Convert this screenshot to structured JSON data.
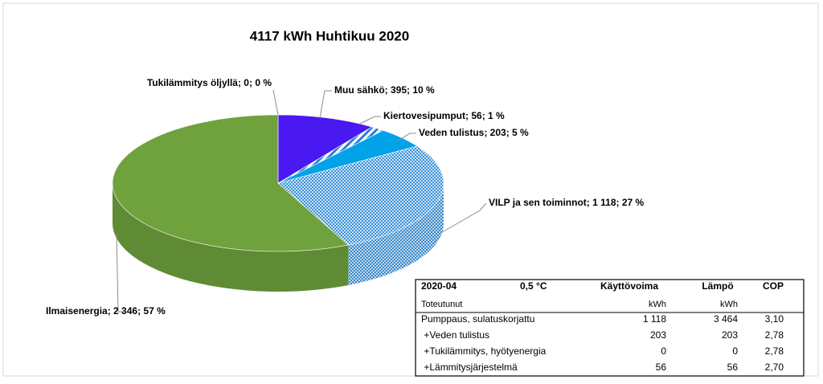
{
  "chart_data": {
    "type": "pie3d",
    "title": "4117  kWh Huhtikuu 2020",
    "categories": [
      "Tukilämmitys öljyllä",
      "Muu sähkö",
      "Kiertovesipumput",
      "Veden tulistus",
      "VILP ja sen toiminnot",
      "Ilmaisenergia"
    ],
    "values": [
      0,
      395,
      56,
      203,
      1118,
      2346
    ],
    "value_labels": [
      "Tukilämmitys öljyllä; 0; 0 %",
      "Muu sähkö; 395; 10 %",
      "Kiertovesipumput; 56; 1 %",
      "Veden tulistus; 203; 5 %",
      "VILP ja sen toiminnot; 1 118; 27 %",
      "Ilmaisenergia; 2 346; 57 %"
    ],
    "colors": [
      "#7f7f7f",
      "#4a18f0",
      "#2a7fd4",
      "#00a2e8",
      "#3b8fd6",
      "#6fa23d"
    ],
    "fill_patterns": [
      "solid",
      "solid",
      "stripes",
      "solid",
      "checker",
      "solid"
    ]
  },
  "table": {
    "header": [
      "2020-04",
      "0,5 °C",
      "Käyttövoima",
      "Lämpö",
      "COP"
    ],
    "units": {
      "label": "Toteutunut",
      "columns": [
        "kWh",
        "kWh"
      ]
    },
    "rows": [
      [
        "Pumppaus, sulatuskorjattu",
        "1 118",
        "3 464",
        "3,10"
      ],
      [
        " +Veden tulistus",
        "203",
        "203",
        "2,78"
      ],
      [
        " +Tukilämmitys, hyötyenergia",
        "0",
        "0",
        "2,78"
      ],
      [
        " +Lämmitysjärjestelmä",
        "56",
        "56",
        "2,70"
      ]
    ]
  }
}
